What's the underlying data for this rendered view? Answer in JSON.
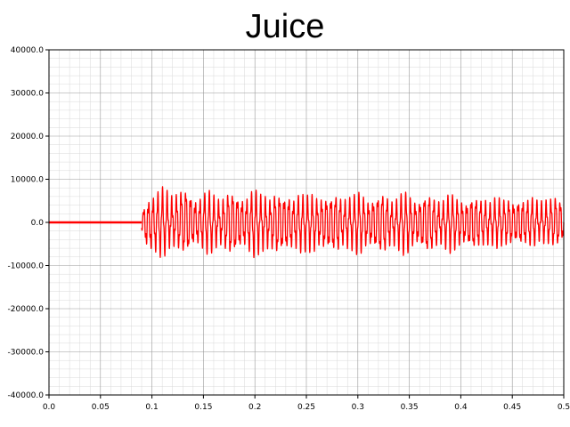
{
  "chart_data": {
    "type": "line",
    "title": "Juice",
    "xlabel": "",
    "ylabel": "",
    "xlim": [
      0.0,
      0.5
    ],
    "ylim": [
      -40000.0,
      40000.0
    ],
    "x_ticks": [
      "0.0",
      "0.05",
      "0.1",
      "0.15",
      "0.2",
      "0.25",
      "0.3",
      "0.35",
      "0.4",
      "0.45",
      "0.5"
    ],
    "y_ticks": [
      "40000.0",
      "30000.0",
      "20000.0",
      "10000.0",
      "0.0",
      "-10000.0",
      "-20000.0",
      "-30000.0",
      "-40000.0"
    ],
    "grid": true,
    "series": [
      {
        "color": "#ff0000",
        "marker": "dot",
        "segments": [
          {
            "x_start": 0.0,
            "x_end": 0.09,
            "y": 0
          },
          {
            "x_start": 0.09,
            "x_end": 0.5,
            "peak_envelope": [
              [
                0.09,
                2000
              ],
              [
                0.095,
                6000
              ],
              [
                0.12,
                7500
              ],
              [
                0.15,
                6000
              ],
              [
                0.2,
                6500
              ],
              [
                0.3,
                6000
              ],
              [
                0.4,
                5500
              ],
              [
                0.5,
                5500
              ]
            ],
            "trough_envelope": [
              [
                0.09,
                -2000
              ],
              [
                0.095,
                -7500
              ],
              [
                0.12,
                -6500
              ],
              [
                0.15,
                -6000
              ],
              [
                0.2,
                -7000
              ],
              [
                0.3,
                -6500
              ],
              [
                0.4,
                -6000
              ],
              [
                0.5,
                -5000
              ]
            ]
          }
        ]
      }
    ]
  }
}
